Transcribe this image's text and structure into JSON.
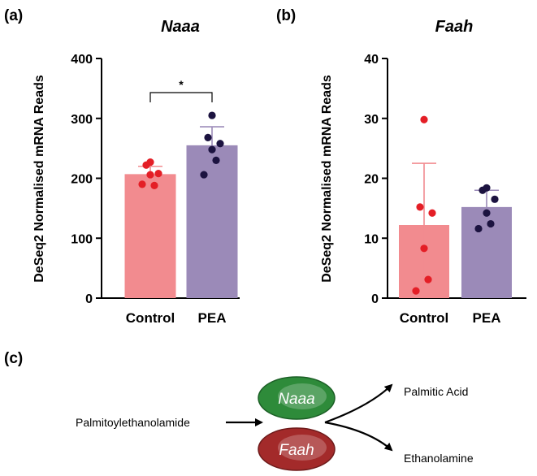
{
  "colors": {
    "control": "#f28b8f",
    "pea": "#9b8ab8",
    "control_dot": "#e41e26",
    "pea_dot": "#1c1340",
    "naaa": "#2e8b3a",
    "faah": "#a32a2a"
  },
  "chart_data": [
    {
      "type": "bar",
      "panel_label": "(a)",
      "title": "Naaa",
      "ylabel": "DeSeq2 Normalised mRNA Reads",
      "ylim": [
        0,
        400
      ],
      "yticks": [
        "0",
        "100",
        "200",
        "300",
        "400"
      ],
      "categories": [
        "Control",
        "PEA"
      ],
      "values": [
        205,
        253
      ],
      "error": [
        15,
        33
      ],
      "points": [
        [
          227,
          222,
          208,
          206,
          188,
          190
        ],
        [
          305,
          268,
          258,
          248,
          230,
          206
        ]
      ],
      "significance": "*"
    },
    {
      "type": "bar",
      "panel_label": "(b)",
      "title": "Faah",
      "ylabel": "DeSeq2 Normalised mRNA Reads",
      "ylim": [
        0,
        40
      ],
      "yticks": [
        "0",
        "10",
        "20",
        "30",
        "40"
      ],
      "categories": [
        "Control",
        "PEA"
      ],
      "values": [
        12,
        15
      ],
      "error": [
        10.5,
        3
      ],
      "points": [
        [
          29.8,
          15.2,
          14.2,
          8.3,
          3.1,
          1.2
        ],
        [
          18.4,
          18.0,
          16.5,
          14.2,
          12.4,
          11.6
        ]
      ],
      "significance": ""
    }
  ],
  "diagram": {
    "panel_label": "(c)",
    "substrate": "Palmitoylethanolamide",
    "enzyme1": "Naaa",
    "enzyme2": "Faah",
    "product1": "Palmitic Acid",
    "product2": "Ethanolamine"
  }
}
